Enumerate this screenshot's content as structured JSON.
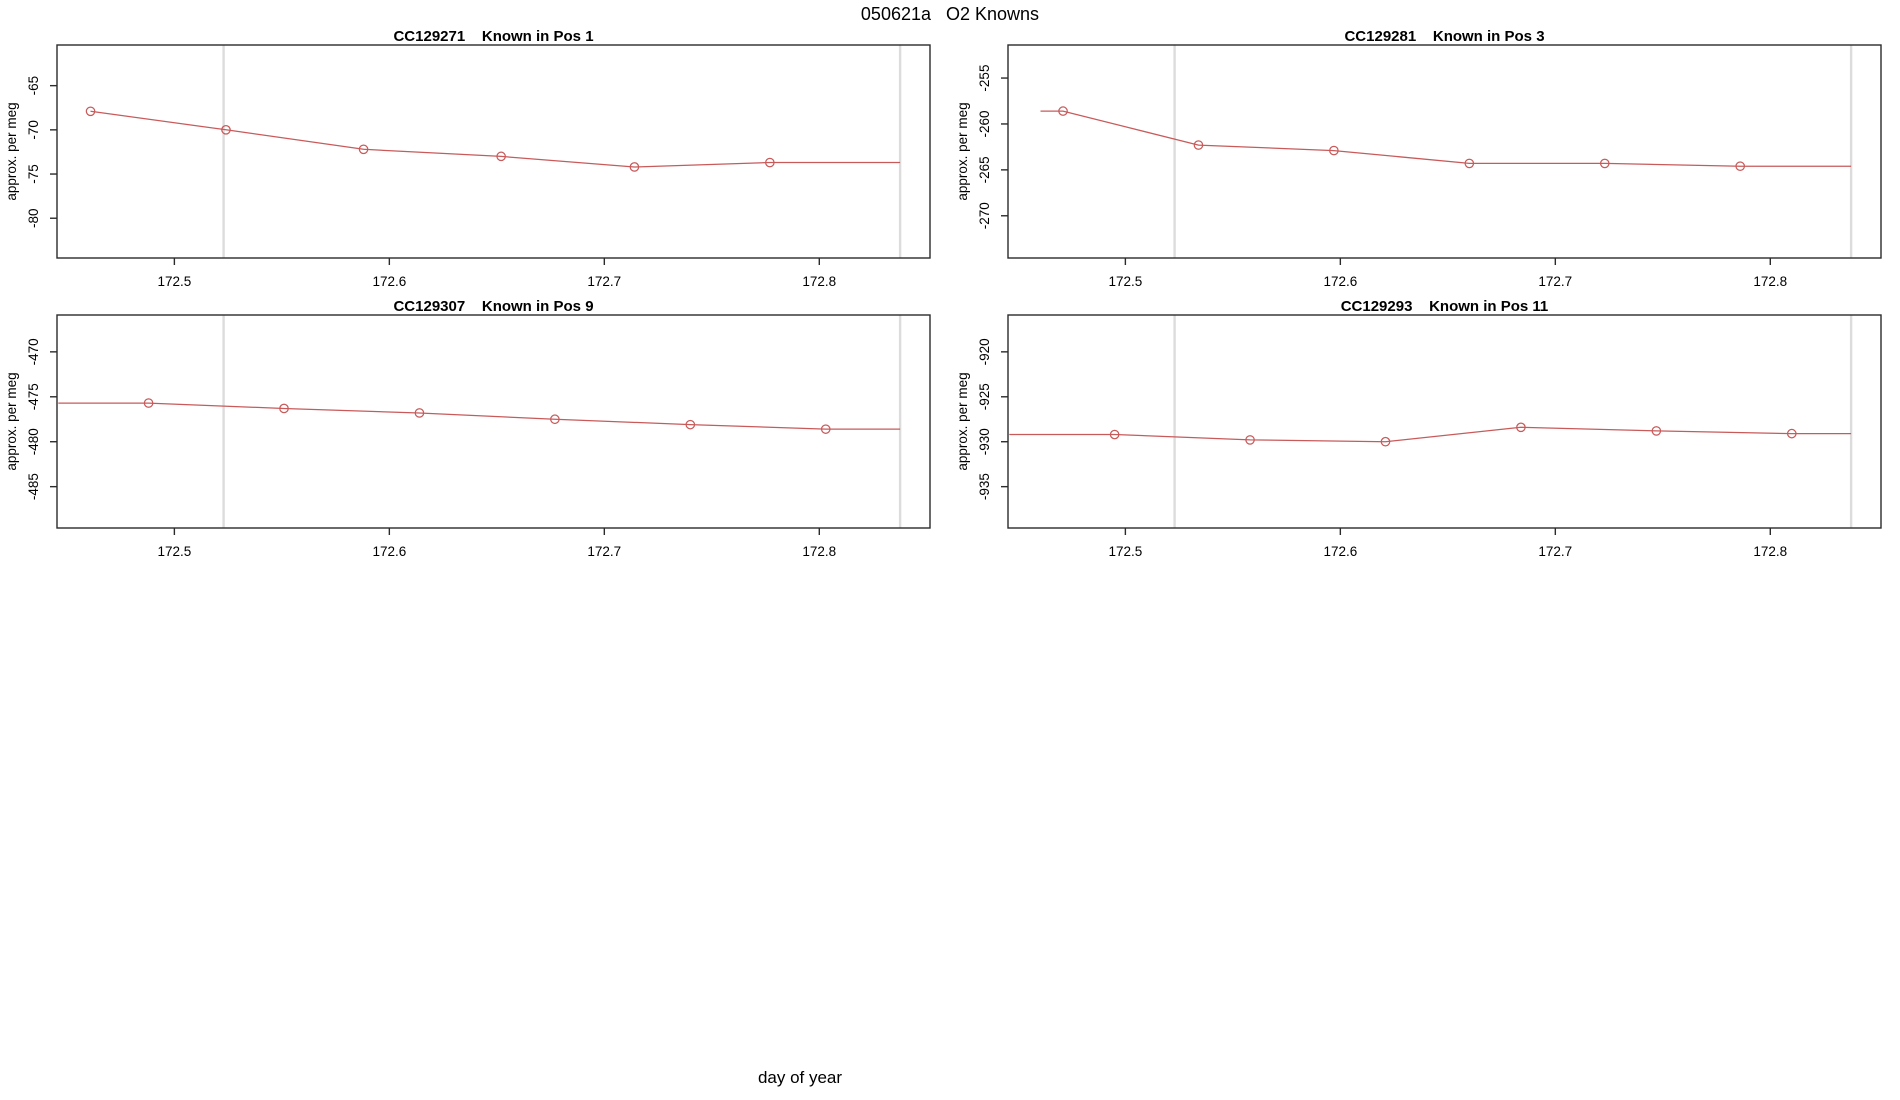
{
  "page": {
    "main_title": "050621a   O2 Knowns",
    "shared_xlabel": "day of year"
  },
  "colors": {
    "series": "#c85a5a",
    "grid": "#dcdcdc",
    "axis": "#2b2b2b",
    "text": "#000000"
  },
  "chart_data": [
    {
      "type": "line",
      "title": "CC129271    Known in Pos 1",
      "ylabel": "approx. per meg",
      "x": [
        172.461,
        172.524,
        172.588,
        172.652,
        172.714,
        172.777
      ],
      "values": [
        -67.9,
        -70.0,
        -72.2,
        -73.0,
        -74.2,
        -73.7
      ],
      "line_start_x": null,
      "line_end_x": 172.8376,
      "xlim": [
        172.4454,
        172.8515
      ],
      "ylim": [
        -84.5,
        -60.4
      ],
      "xticks": [
        172.5,
        172.6,
        172.7,
        172.8
      ],
      "xtick_labels": [
        "172.5",
        "172.6",
        "172.7",
        "172.8"
      ],
      "yticks": [
        -80,
        -75,
        -70,
        -65
      ],
      "ytick_labels": [
        "-80",
        "-75",
        "-70",
        "-65"
      ],
      "vlines": [
        172.5229,
        172.8376
      ],
      "grid": false,
      "legend": null,
      "marker": "open-circle"
    },
    {
      "type": "line",
      "title": "CC129281    Known in Pos 3",
      "ylabel": "approx. per meg",
      "x": [
        172.471,
        172.534,
        172.597,
        172.66,
        172.723,
        172.786
      ],
      "values": [
        -258.6,
        -262.3,
        -262.9,
        -264.3,
        -264.3,
        -264.6
      ],
      "line_start_x": 172.4605,
      "line_end_x": 172.8376,
      "xlim": [
        172.4454,
        172.8515
      ],
      "ylim": [
        -274.6,
        -251.4
      ],
      "xticks": [
        172.5,
        172.6,
        172.7,
        172.8
      ],
      "xtick_labels": [
        "172.5",
        "172.6",
        "172.7",
        "172.8"
      ],
      "yticks": [
        -270,
        -265,
        -260,
        -255
      ],
      "ytick_labels": [
        "-270",
        "-265",
        "-260",
        "-255"
      ],
      "vlines": [
        172.5229,
        172.8376
      ],
      "grid": false,
      "legend": null,
      "marker": "open-circle"
    },
    {
      "type": "line",
      "title": "CC129307    Known in Pos 9",
      "ylabel": "approx. per meg",
      "x": [
        172.488,
        172.551,
        172.614,
        172.677,
        172.74,
        172.803
      ],
      "values": [
        -475.7,
        -476.3,
        -476.8,
        -477.5,
        -478.1,
        -478.6
      ],
      "line_start_x": 172.446,
      "line_end_x": 172.8376,
      "xlim": [
        172.4454,
        172.8515
      ],
      "ylim": [
        -489.6,
        -465.9
      ],
      "xticks": [
        172.5,
        172.6,
        172.7,
        172.8
      ],
      "xtick_labels": [
        "172.5",
        "172.6",
        "172.7",
        "172.8"
      ],
      "yticks": [
        -485,
        -480,
        -475,
        -470
      ],
      "ytick_labels": [
        "-485",
        "-480",
        "-475",
        "-470"
      ],
      "vlines": [
        172.5229,
        172.8376
      ],
      "grid": false,
      "legend": null,
      "marker": "open-circle"
    },
    {
      "type": "line",
      "title": "CC129293    Known in Pos 11",
      "ylabel": "approx. per meg",
      "x": [
        172.495,
        172.558,
        172.621,
        172.684,
        172.747,
        172.81
      ],
      "values": [
        -929.2,
        -929.8,
        -930.0,
        -928.4,
        -928.8,
        -929.1
      ],
      "line_start_x": 172.446,
      "line_end_x": 172.8376,
      "xlim": [
        172.4454,
        172.8515
      ],
      "ylim": [
        -939.6,
        -915.9
      ],
      "xticks": [
        172.5,
        172.6,
        172.7,
        172.8
      ],
      "xtick_labels": [
        "172.5",
        "172.6",
        "172.7",
        "172.8"
      ],
      "yticks": [
        -935,
        -930,
        -925,
        -920
      ],
      "ytick_labels": [
        "-935",
        "-930",
        "-925",
        "-920"
      ],
      "vlines": [
        172.5229,
        172.8376
      ],
      "grid": false,
      "legend": null,
      "marker": "open-circle"
    }
  ]
}
